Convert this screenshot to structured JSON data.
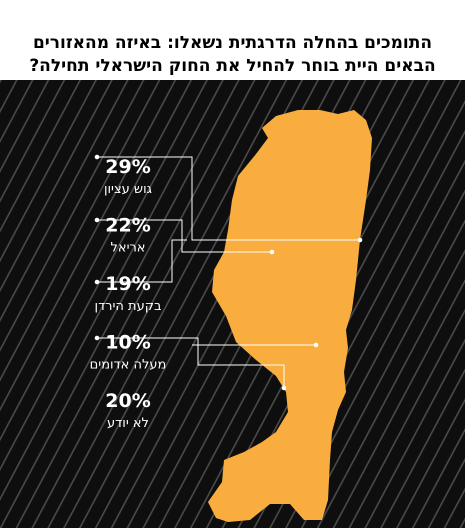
{
  "title_lines": [
    "התומכים בהחלה הדרגתית נשאלו: באיזה מהאזורים",
    "הבאים היית בוחר להחיל את החוק הישראלי תחילה?"
  ],
  "colors": {
    "background": "#0e0e0e",
    "stripes": "#4a4a4a",
    "map": "#f9ad3e",
    "text": "#ffffff",
    "leader_lines": "#ffffff"
  },
  "chart_data": {
    "type": "bar",
    "title": "התומכים בהחלה הדרגתית נשאלו: באיזה מהאזורים הבאים היית בוחר להחיל את החוק הישראלי תחילה?",
    "categories": [
      "גוש עציון",
      "אריאל",
      "בקעת הירדן",
      "מעלה אדומים",
      "לא יודע"
    ],
    "values": [
      29,
      22,
      19,
      10,
      20
    ],
    "value_labels": [
      "29%",
      "22%",
      "19%",
      "10%",
      "20%"
    ],
    "unit": "%"
  }
}
